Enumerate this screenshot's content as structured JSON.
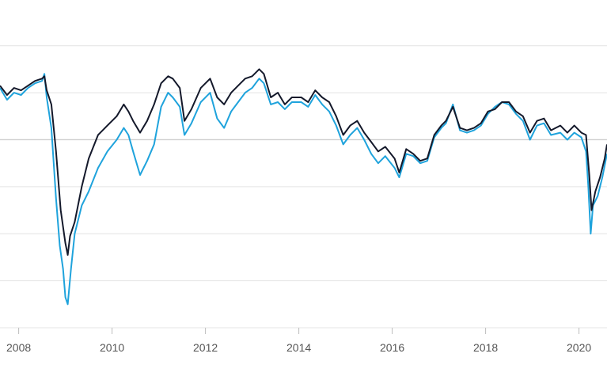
{
  "chart_data": {
    "type": "line",
    "title": "",
    "xlabel": "",
    "ylabel": "",
    "grid": true,
    "zero_line_level": 0,
    "x_ticks": [
      "2008",
      "2010",
      "2012",
      "2014",
      "2016",
      "2018",
      "2020"
    ],
    "x_range": [
      2007.6,
      2020.6
    ],
    "y_range": [
      -80,
      50
    ],
    "y_gridlines": [
      -60,
      -40,
      -20,
      0,
      20,
      40
    ],
    "colors": {
      "series1": "#14192b",
      "series2": "#1fa3dc",
      "grid": "#e4e4e4",
      "zero_line": "#cfcfcf"
    },
    "series": [
      {
        "color": "#14192b",
        "points": [
          [
            2007.6,
            23
          ],
          [
            2007.75,
            19
          ],
          [
            2007.9,
            22
          ],
          [
            2008.05,
            21
          ],
          [
            2008.2,
            23
          ],
          [
            2008.35,
            25
          ],
          [
            2008.5,
            26
          ],
          [
            2008.55,
            27
          ],
          [
            2008.6,
            21
          ],
          [
            2008.7,
            15
          ],
          [
            2008.8,
            -5
          ],
          [
            2008.9,
            -30
          ],
          [
            2009.0,
            -44
          ],
          [
            2009.05,
            -49
          ],
          [
            2009.1,
            -41
          ],
          [
            2009.2,
            -35
          ],
          [
            2009.35,
            -20
          ],
          [
            2009.5,
            -8
          ],
          [
            2009.7,
            2
          ],
          [
            2009.9,
            6
          ],
          [
            2010.1,
            10
          ],
          [
            2010.25,
            15
          ],
          [
            2010.35,
            12
          ],
          [
            2010.45,
            8
          ],
          [
            2010.6,
            3
          ],
          [
            2010.75,
            8
          ],
          [
            2010.9,
            15
          ],
          [
            2011.05,
            24
          ],
          [
            2011.2,
            27
          ],
          [
            2011.3,
            26
          ],
          [
            2011.45,
            22
          ],
          [
            2011.55,
            8
          ],
          [
            2011.7,
            13
          ],
          [
            2011.9,
            22
          ],
          [
            2012.1,
            26
          ],
          [
            2012.25,
            18
          ],
          [
            2012.4,
            15
          ],
          [
            2012.55,
            20
          ],
          [
            2012.7,
            23
          ],
          [
            2012.85,
            26
          ],
          [
            2013.0,
            27
          ],
          [
            2013.15,
            30
          ],
          [
            2013.25,
            28
          ],
          [
            2013.4,
            18
          ],
          [
            2013.55,
            20
          ],
          [
            2013.7,
            15
          ],
          [
            2013.85,
            18
          ],
          [
            2014.05,
            18
          ],
          [
            2014.2,
            16
          ],
          [
            2014.35,
            21
          ],
          [
            2014.5,
            18
          ],
          [
            2014.65,
            16
          ],
          [
            2014.8,
            10
          ],
          [
            2014.95,
            2
          ],
          [
            2015.1,
            6
          ],
          [
            2015.25,
            8
          ],
          [
            2015.4,
            3
          ],
          [
            2015.55,
            -1
          ],
          [
            2015.7,
            -5
          ],
          [
            2015.85,
            -3
          ],
          [
            2016.05,
            -8
          ],
          [
            2016.15,
            -14
          ],
          [
            2016.3,
            -4
          ],
          [
            2016.45,
            -6
          ],
          [
            2016.6,
            -9
          ],
          [
            2016.75,
            -8
          ],
          [
            2016.9,
            2
          ],
          [
            2017.05,
            6
          ],
          [
            2017.15,
            8
          ],
          [
            2017.3,
            14
          ],
          [
            2017.45,
            5
          ],
          [
            2017.6,
            4
          ],
          [
            2017.75,
            5
          ],
          [
            2017.9,
            7
          ],
          [
            2018.05,
            12
          ],
          [
            2018.2,
            13
          ],
          [
            2018.35,
            16
          ],
          [
            2018.5,
            16
          ],
          [
            2018.65,
            12
          ],
          [
            2018.8,
            10
          ],
          [
            2018.95,
            3
          ],
          [
            2019.1,
            8
          ],
          [
            2019.25,
            9
          ],
          [
            2019.4,
            4
          ],
          [
            2019.6,
            6
          ],
          [
            2019.75,
            3
          ],
          [
            2019.9,
            6
          ],
          [
            2020.05,
            3
          ],
          [
            2020.15,
            2
          ],
          [
            2020.22,
            -15
          ],
          [
            2020.27,
            -30
          ],
          [
            2020.35,
            -22
          ],
          [
            2020.45,
            -16
          ],
          [
            2020.55,
            -8
          ],
          [
            2020.6,
            -2
          ]
        ]
      },
      {
        "color": "#1fa3dc",
        "points": [
          [
            2007.6,
            22
          ],
          [
            2007.75,
            17
          ],
          [
            2007.9,
            20
          ],
          [
            2008.05,
            19
          ],
          [
            2008.2,
            22
          ],
          [
            2008.35,
            24
          ],
          [
            2008.5,
            25
          ],
          [
            2008.55,
            28
          ],
          [
            2008.6,
            18
          ],
          [
            2008.7,
            5
          ],
          [
            2008.8,
            -25
          ],
          [
            2008.88,
            -45
          ],
          [
            2008.95,
            -55
          ],
          [
            2009.0,
            -67
          ],
          [
            2009.05,
            -70
          ],
          [
            2009.12,
            -55
          ],
          [
            2009.2,
            -40
          ],
          [
            2009.35,
            -28
          ],
          [
            2009.5,
            -22
          ],
          [
            2009.7,
            -12
          ],
          [
            2009.9,
            -5
          ],
          [
            2010.1,
            0
          ],
          [
            2010.25,
            5
          ],
          [
            2010.35,
            2
          ],
          [
            2010.45,
            -5
          ],
          [
            2010.6,
            -15
          ],
          [
            2010.75,
            -9
          ],
          [
            2010.9,
            -2
          ],
          [
            2011.05,
            14
          ],
          [
            2011.2,
            20
          ],
          [
            2011.3,
            18
          ],
          [
            2011.45,
            14
          ],
          [
            2011.55,
            2
          ],
          [
            2011.7,
            7
          ],
          [
            2011.9,
            16
          ],
          [
            2012.1,
            20
          ],
          [
            2012.25,
            9
          ],
          [
            2012.4,
            5
          ],
          [
            2012.55,
            12
          ],
          [
            2012.7,
            16
          ],
          [
            2012.85,
            20
          ],
          [
            2013.0,
            22
          ],
          [
            2013.15,
            26
          ],
          [
            2013.25,
            24
          ],
          [
            2013.4,
            15
          ],
          [
            2013.55,
            16
          ],
          [
            2013.7,
            13
          ],
          [
            2013.85,
            16
          ],
          [
            2014.05,
            16
          ],
          [
            2014.2,
            14
          ],
          [
            2014.35,
            19
          ],
          [
            2014.5,
            15
          ],
          [
            2014.65,
            12
          ],
          [
            2014.8,
            6
          ],
          [
            2014.95,
            -2
          ],
          [
            2015.1,
            2
          ],
          [
            2015.25,
            5
          ],
          [
            2015.4,
            0
          ],
          [
            2015.55,
            -6
          ],
          [
            2015.7,
            -10
          ],
          [
            2015.85,
            -7
          ],
          [
            2016.05,
            -12
          ],
          [
            2016.15,
            -16
          ],
          [
            2016.3,
            -6
          ],
          [
            2016.45,
            -7
          ],
          [
            2016.6,
            -10
          ],
          [
            2016.75,
            -9
          ],
          [
            2016.9,
            1
          ],
          [
            2017.05,
            5
          ],
          [
            2017.15,
            7
          ],
          [
            2017.3,
            15
          ],
          [
            2017.45,
            4
          ],
          [
            2017.6,
            3
          ],
          [
            2017.75,
            4
          ],
          [
            2017.9,
            6
          ],
          [
            2018.05,
            11
          ],
          [
            2018.2,
            14
          ],
          [
            2018.35,
            16
          ],
          [
            2018.5,
            15
          ],
          [
            2018.65,
            11
          ],
          [
            2018.8,
            8
          ],
          [
            2018.95,
            0
          ],
          [
            2019.1,
            6
          ],
          [
            2019.25,
            7
          ],
          [
            2019.4,
            2
          ],
          [
            2019.6,
            3
          ],
          [
            2019.75,
            0
          ],
          [
            2019.9,
            3
          ],
          [
            2020.05,
            1
          ],
          [
            2020.15,
            -5
          ],
          [
            2020.2,
            -20
          ],
          [
            2020.25,
            -40
          ],
          [
            2020.3,
            -28
          ],
          [
            2020.4,
            -24
          ],
          [
            2020.5,
            -16
          ],
          [
            2020.6,
            -6
          ]
        ]
      }
    ]
  }
}
